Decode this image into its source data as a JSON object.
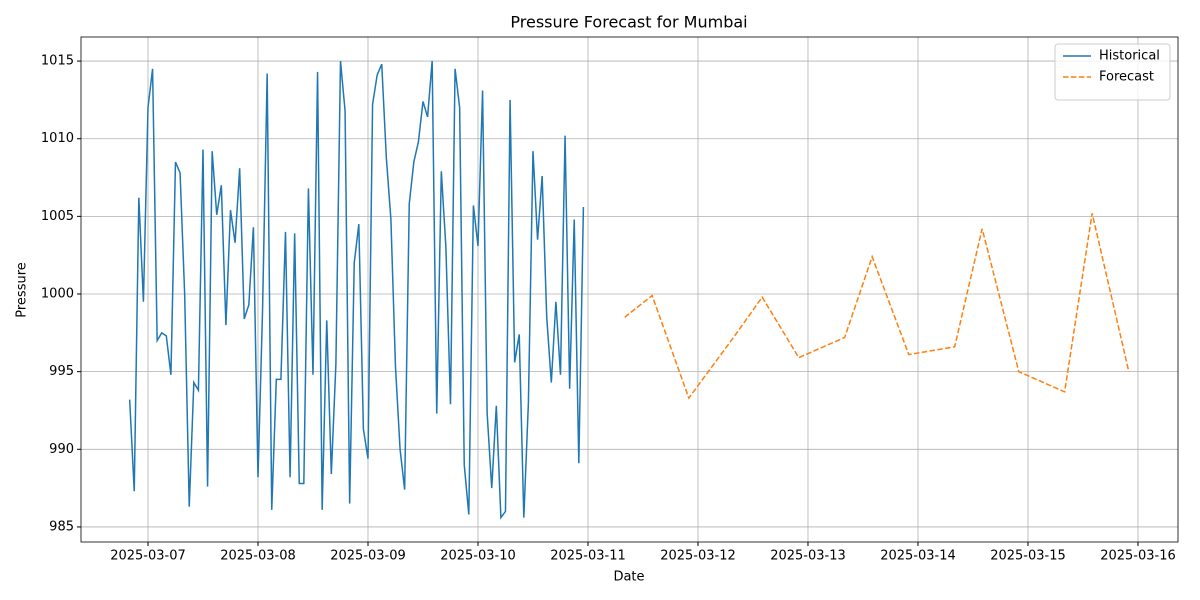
{
  "chart_data": {
    "type": "line",
    "title": "Pressure Forecast for Mumbai",
    "x_label": "Date",
    "y_label": "Pressure",
    "xlim": [
      "2025-03-06 09:23",
      "2025-03-16 08:44"
    ],
    "ylim": [
      984.03,
      1016.55
    ],
    "xticks": [
      "2025-03-07",
      "2025-03-08",
      "2025-03-09",
      "2025-03-10",
      "2025-03-11",
      "2025-03-12",
      "2025-03-13",
      "2025-03-14",
      "2025-03-15",
      "2025-03-16"
    ],
    "yticks": [
      985,
      990,
      995,
      1000,
      1005,
      1010,
      1015
    ],
    "grid": true,
    "legend": "upper right",
    "series": [
      {
        "name": "Historical",
        "color": "#1f77b4",
        "linestyle": "solid",
        "x": [
          "2025-03-06 20:00",
          "2025-03-06 21:00",
          "2025-03-06 22:00",
          "2025-03-06 23:00",
          "2025-03-07 00:00",
          "2025-03-07 01:00",
          "2025-03-07 02:00",
          "2025-03-07 03:00",
          "2025-03-07 04:00",
          "2025-03-07 05:00",
          "2025-03-07 06:00",
          "2025-03-07 07:00",
          "2025-03-07 08:00",
          "2025-03-07 09:00",
          "2025-03-07 10:00",
          "2025-03-07 11:00",
          "2025-03-07 12:00",
          "2025-03-07 13:00",
          "2025-03-07 14:00",
          "2025-03-07 15:00",
          "2025-03-07 16:00",
          "2025-03-07 17:00",
          "2025-03-07 18:00",
          "2025-03-07 19:00",
          "2025-03-07 20:00",
          "2025-03-07 21:00",
          "2025-03-07 22:00",
          "2025-03-07 23:00",
          "2025-03-08 00:00",
          "2025-03-08 01:00",
          "2025-03-08 02:00",
          "2025-03-08 03:00",
          "2025-03-08 04:00",
          "2025-03-08 05:00",
          "2025-03-08 06:00",
          "2025-03-08 07:00",
          "2025-03-08 08:00",
          "2025-03-08 09:00",
          "2025-03-08 10:00",
          "2025-03-08 11:00",
          "2025-03-08 12:00",
          "2025-03-08 13:00",
          "2025-03-08 14:00",
          "2025-03-08 15:00",
          "2025-03-08 16:00",
          "2025-03-08 17:00",
          "2025-03-08 18:00",
          "2025-03-08 19:00",
          "2025-03-08 20:00",
          "2025-03-08 21:00",
          "2025-03-08 22:00",
          "2025-03-08 23:00",
          "2025-03-09 00:00",
          "2025-03-09 01:00",
          "2025-03-09 02:00",
          "2025-03-09 03:00",
          "2025-03-09 04:00",
          "2025-03-09 05:00",
          "2025-03-09 06:00",
          "2025-03-09 07:00",
          "2025-03-09 08:00",
          "2025-03-09 09:00",
          "2025-03-09 10:00",
          "2025-03-09 11:00",
          "2025-03-09 12:00",
          "2025-03-09 13:00",
          "2025-03-09 14:00",
          "2025-03-09 15:00",
          "2025-03-09 16:00",
          "2025-03-09 17:00",
          "2025-03-09 18:00",
          "2025-03-09 19:00",
          "2025-03-09 20:00",
          "2025-03-09 21:00",
          "2025-03-09 22:00",
          "2025-03-09 23:00",
          "2025-03-10 00:00",
          "2025-03-10 01:00",
          "2025-03-10 02:00",
          "2025-03-10 03:00",
          "2025-03-10 04:00",
          "2025-03-10 05:00",
          "2025-03-10 06:00",
          "2025-03-10 07:00",
          "2025-03-10 08:00",
          "2025-03-10 09:00",
          "2025-03-10 10:00",
          "2025-03-10 11:00",
          "2025-03-10 12:00",
          "2025-03-10 13:00",
          "2025-03-10 14:00",
          "2025-03-10 15:00",
          "2025-03-10 16:00",
          "2025-03-10 17:00",
          "2025-03-10 18:00",
          "2025-03-10 19:00",
          "2025-03-10 20:00",
          "2025-03-10 21:00",
          "2025-03-10 22:00",
          "2025-03-10 23:00"
        ],
        "values": [
          993.2,
          987.3,
          1006.2,
          999.5,
          1012,
          1014.5,
          997,
          997.5,
          997.3,
          994.8,
          1008.5,
          1007.8,
          1000,
          986.3,
          994.3,
          993.8,
          1009.3,
          987.6,
          1009.2,
          1005.1,
          1007,
          998,
          1005.4,
          1003.3,
          1008.1,
          998.4,
          999.3,
          1004.3,
          988.2,
          999,
          1014.2,
          986.1,
          994.5,
          994.5,
          1004,
          988.2,
          1003.9,
          987.8,
          987.8,
          1006.8,
          994.8,
          1014.3,
          986.1,
          998.3,
          988.4,
          995.5,
          1015,
          1011.8,
          986.5,
          1002,
          1004.5,
          991.3,
          989.4,
          1012.2,
          1014.1,
          1014.8,
          1008.8,
          1004.8,
          995.3,
          990,
          987.4,
          1005.8,
          1008.5,
          1009.8,
          1012.4,
          1011.4,
          1015,
          992.3,
          1007.9,
          1003,
          992.9,
          1014.5,
          1012,
          989,
          985.8,
          1005.7,
          1003.1,
          1013.1,
          992.3,
          987.5,
          992.8,
          985.6,
          986,
          1012.5,
          995.6,
          997.4,
          985.6,
          993,
          1009.2,
          1003.5,
          1007.6,
          998.5,
          994.3,
          999.5,
          994.8,
          1010.2,
          993.9,
          1004.8,
          989.1,
          1005.6
        ]
      },
      {
        "name": "Forecast",
        "color": "#ff7f0e",
        "linestyle": "dashed",
        "x": [
          "2025-03-11 08:00",
          "2025-03-11 14:00",
          "2025-03-11 22:00",
          "2025-03-12 08:00",
          "2025-03-12 14:00",
          "2025-03-12 22:00",
          "2025-03-13 08:00",
          "2025-03-13 14:00",
          "2025-03-13 22:00",
          "2025-03-14 08:00",
          "2025-03-14 14:00",
          "2025-03-14 22:00",
          "2025-03-15 08:00",
          "2025-03-15 14:00",
          "2025-03-15 22:00"
        ],
        "values": [
          998.5,
          999.9,
          993.3,
          997.3,
          999.8,
          995.9,
          997.2,
          1002.4,
          996.1,
          996.6,
          1004.2,
          995,
          993.7,
          1005.2,
          995
        ]
      }
    ]
  }
}
